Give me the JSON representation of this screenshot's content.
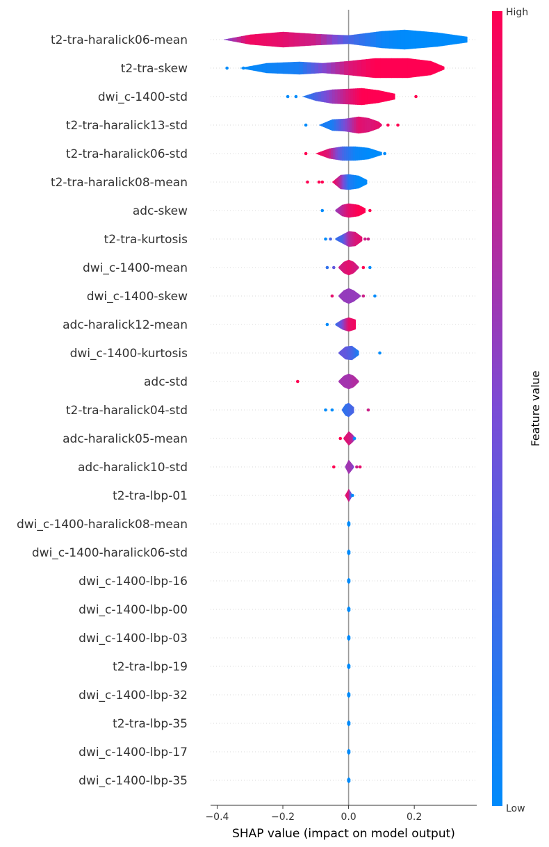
{
  "chart_data": {
    "type": "violin",
    "xlabel": "SHAP value (impact on model output)",
    "xlim": [
      -0.42,
      0.39
    ],
    "xticks": [
      -0.4,
      -0.2,
      0.0,
      0.2
    ],
    "xtick_labels": [
      "−0.4",
      "−0.2",
      "0.0",
      "0.2"
    ],
    "colorbar": {
      "title": "Feature value",
      "high_label": "High",
      "low_label": "Low",
      "low_color": "#008bfb",
      "high_color": "#ff0052"
    },
    "features": [
      {
        "name": "t2-tra-haralick06-mean",
        "segs": [
          [
            -0.38,
            0.0,
            0.5
          ],
          [
            -0.3,
            0.35,
            0.95
          ],
          [
            -0.2,
            0.55,
            0.9
          ],
          [
            -0.1,
            0.4,
            0.8
          ],
          [
            0.0,
            0.3,
            0.3
          ],
          [
            0.1,
            0.6,
            0.05
          ],
          [
            0.17,
            0.7,
            0.0
          ],
          [
            0.27,
            0.5,
            0.0
          ],
          [
            0.36,
            0.2,
            0.0
          ]
        ],
        "dots": []
      },
      {
        "name": "t2-tra-skew",
        "segs": [
          [
            -0.33,
            0.0,
            0.0
          ],
          [
            -0.25,
            0.35,
            0.05
          ],
          [
            -0.15,
            0.45,
            0.1
          ],
          [
            -0.08,
            0.35,
            0.5
          ],
          [
            0.0,
            0.5,
            0.85
          ],
          [
            0.08,
            0.7,
            1.0
          ],
          [
            0.18,
            0.7,
            1.0
          ],
          [
            0.25,
            0.5,
            1.0
          ],
          [
            0.29,
            0.1,
            1.0
          ]
        ],
        "dots": [
          [
            -0.37,
            0.0
          ],
          [
            -0.32,
            0.0
          ]
        ]
      },
      {
        "name": "dwi_c-1400-std",
        "segs": [
          [
            -0.14,
            0.0,
            0.1
          ],
          [
            -0.1,
            0.3,
            0.3
          ],
          [
            -0.05,
            0.5,
            0.6
          ],
          [
            0.0,
            0.55,
            0.85
          ],
          [
            0.04,
            0.6,
            1.0
          ],
          [
            0.09,
            0.45,
            1.0
          ],
          [
            0.14,
            0.2,
            1.0
          ]
        ],
        "dots": [
          [
            -0.185,
            0.0
          ],
          [
            -0.16,
            0.0
          ],
          [
            0.205,
            1.0
          ]
        ]
      },
      {
        "name": "t2-tra-haralick13-std",
        "segs": [
          [
            -0.09,
            0.0,
            0.1
          ],
          [
            -0.05,
            0.4,
            0.1
          ],
          [
            -0.01,
            0.45,
            0.5
          ],
          [
            0.03,
            0.6,
            0.9
          ],
          [
            0.06,
            0.5,
            0.85
          ],
          [
            0.09,
            0.25,
            0.9
          ],
          [
            0.1,
            0.05,
            0.9
          ]
        ],
        "dots": [
          [
            -0.13,
            0.0
          ],
          [
            0.12,
            1.0
          ],
          [
            0.15,
            1.0
          ]
        ]
      },
      {
        "name": "t2-tra-haralick06-std",
        "segs": [
          [
            -0.1,
            0.0,
            1.0
          ],
          [
            -0.06,
            0.35,
            0.85
          ],
          [
            -0.02,
            0.5,
            0.3
          ],
          [
            0.02,
            0.5,
            0.05
          ],
          [
            0.06,
            0.4,
            0.0
          ],
          [
            0.1,
            0.1,
            0.0
          ]
        ],
        "dots": [
          [
            -0.13,
            1.0
          ],
          [
            0.11,
            0.0
          ]
        ]
      },
      {
        "name": "t2-tra-haralick08-mean",
        "segs": [
          [
            -0.05,
            0.0,
            1.0
          ],
          [
            -0.025,
            0.5,
            0.7
          ],
          [
            0.0,
            0.55,
            0.15
          ],
          [
            0.03,
            0.45,
            0.0
          ],
          [
            0.055,
            0.15,
            0.0
          ]
        ],
        "dots": [
          [
            -0.125,
            1.0
          ],
          [
            -0.09,
            1.0
          ],
          [
            -0.08,
            1.0
          ]
        ]
      },
      {
        "name": "adc-skew",
        "segs": [
          [
            -0.04,
            0.05,
            0.6
          ],
          [
            -0.02,
            0.4,
            0.75
          ],
          [
            0.0,
            0.5,
            0.9
          ],
          [
            0.03,
            0.4,
            1.0
          ],
          [
            0.05,
            0.15,
            1.0
          ]
        ],
        "dots": [
          [
            -0.08,
            0.0
          ],
          [
            0.065,
            1.0
          ]
        ]
      },
      {
        "name": "t2-tra-kurtosis",
        "segs": [
          [
            -0.04,
            0.05,
            0.2
          ],
          [
            -0.02,
            0.3,
            0.3
          ],
          [
            0.0,
            0.55,
            0.7
          ],
          [
            0.02,
            0.5,
            0.85
          ],
          [
            0.04,
            0.15,
            0.9
          ]
        ],
        "dots": [
          [
            -0.07,
            0.0
          ],
          [
            -0.055,
            0.3
          ],
          [
            0.05,
            0.8
          ],
          [
            0.06,
            0.8
          ]
        ]
      },
      {
        "name": "dwi_c-1400-mean",
        "segs": [
          [
            -0.03,
            0.05,
            0.8
          ],
          [
            -0.015,
            0.4,
            0.85
          ],
          [
            0.0,
            0.55,
            0.9
          ],
          [
            0.015,
            0.4,
            0.85
          ],
          [
            0.03,
            0.05,
            0.8
          ]
        ],
        "dots": [
          [
            -0.065,
            0.2
          ],
          [
            -0.045,
            0.4
          ],
          [
            0.045,
            1.0
          ],
          [
            0.065,
            0.0
          ]
        ]
      },
      {
        "name": "dwi_c-1400-skew",
        "segs": [
          [
            -0.03,
            0.05,
            0.6
          ],
          [
            -0.015,
            0.4,
            0.6
          ],
          [
            0.0,
            0.55,
            0.6
          ],
          [
            0.015,
            0.4,
            0.6
          ],
          [
            0.035,
            0.05,
            0.6
          ]
        ],
        "dots": [
          [
            -0.05,
            0.9
          ],
          [
            0.045,
            0.8
          ],
          [
            0.08,
            0.0
          ]
        ]
      },
      {
        "name": "adc-haralick12-mean",
        "segs": [
          [
            -0.04,
            0.05,
            0.2
          ],
          [
            -0.02,
            0.35,
            0.5
          ],
          [
            0.0,
            0.5,
            0.9
          ],
          [
            0.02,
            0.35,
            0.95
          ],
          [
            0.02,
            0.05,
            0.95
          ]
        ],
        "dots": [
          [
            -0.065,
            0.0
          ]
        ]
      },
      {
        "name": "dwi_c-1400-kurtosis",
        "segs": [
          [
            -0.03,
            0.05,
            0.4
          ],
          [
            -0.01,
            0.45,
            0.4
          ],
          [
            0.01,
            0.5,
            0.3
          ],
          [
            0.03,
            0.15,
            0.1
          ]
        ],
        "dots": [
          [
            0.095,
            0.0
          ]
        ]
      },
      {
        "name": "adc-std",
        "segs": [
          [
            -0.03,
            0.05,
            0.65
          ],
          [
            -0.015,
            0.4,
            0.65
          ],
          [
            0.0,
            0.55,
            0.65
          ],
          [
            0.015,
            0.4,
            0.7
          ],
          [
            0.03,
            0.05,
            0.7
          ]
        ],
        "dots": [
          [
            -0.155,
            1.0
          ]
        ]
      },
      {
        "name": "t2-tra-haralick04-std",
        "segs": [
          [
            -0.02,
            0.05,
            0.2
          ],
          [
            -0.01,
            0.4,
            0.2
          ],
          [
            0.0,
            0.5,
            0.25
          ],
          [
            0.015,
            0.2,
            0.3
          ]
        ],
        "dots": [
          [
            -0.07,
            0.0
          ],
          [
            -0.05,
            0.0
          ],
          [
            0.06,
            0.8
          ]
        ]
      },
      {
        "name": "adc-haralick05-mean",
        "segs": [
          [
            -0.015,
            0.05,
            0.9
          ],
          [
            0.0,
            0.5,
            0.85
          ],
          [
            0.01,
            0.3,
            0.75
          ],
          [
            0.02,
            0.05,
            0.4
          ]
        ],
        "dots": [
          [
            -0.025,
            1.0
          ],
          [
            0.018,
            0.0
          ]
        ]
      },
      {
        "name": "adc-haralick10-std",
        "segs": [
          [
            -0.01,
            0.05,
            0.6
          ],
          [
            0.0,
            0.5,
            0.65
          ],
          [
            0.01,
            0.2,
            0.6
          ],
          [
            0.015,
            0.05,
            0.5
          ]
        ],
        "dots": [
          [
            -0.045,
            1.0
          ],
          [
            0.025,
            0.8
          ],
          [
            0.035,
            0.9
          ]
        ]
      },
      {
        "name": "t2-tra-lbp-01",
        "segs": [
          [
            -0.01,
            0.05,
            0.9
          ],
          [
            0.0,
            0.45,
            0.85
          ],
          [
            0.008,
            0.15,
            0.3
          ]
        ],
        "dots": [
          [
            0.012,
            0.0
          ]
        ]
      },
      {
        "name": "dwi_c-1400-haralick08-mean",
        "segs": [
          [
            -0.004,
            0.1,
            0.0
          ],
          [
            0.0,
            0.2,
            0.0
          ],
          [
            0.004,
            0.1,
            0.0
          ]
        ],
        "dots": []
      },
      {
        "name": "dwi_c-1400-haralick06-std",
        "segs": [
          [
            -0.004,
            0.1,
            0.0
          ],
          [
            0.0,
            0.2,
            0.0
          ],
          [
            0.004,
            0.1,
            0.0
          ]
        ],
        "dots": []
      },
      {
        "name": "dwi_c-1400-lbp-16",
        "segs": [
          [
            -0.004,
            0.1,
            0.0
          ],
          [
            0.0,
            0.2,
            0.0
          ],
          [
            0.004,
            0.1,
            0.0
          ]
        ],
        "dots": []
      },
      {
        "name": "dwi_c-1400-lbp-00",
        "segs": [
          [
            -0.004,
            0.1,
            0.0
          ],
          [
            0.0,
            0.2,
            0.0
          ],
          [
            0.004,
            0.1,
            0.0
          ]
        ],
        "dots": []
      },
      {
        "name": "dwi_c-1400-lbp-03",
        "segs": [
          [
            -0.004,
            0.1,
            0.0
          ],
          [
            0.0,
            0.2,
            0.0
          ],
          [
            0.004,
            0.1,
            0.0
          ]
        ],
        "dots": []
      },
      {
        "name": "t2-tra-lbp-19",
        "segs": [
          [
            -0.004,
            0.1,
            0.0
          ],
          [
            0.0,
            0.2,
            0.0
          ],
          [
            0.004,
            0.1,
            0.0
          ]
        ],
        "dots": []
      },
      {
        "name": "dwi_c-1400-lbp-32",
        "segs": [
          [
            -0.004,
            0.1,
            0.0
          ],
          [
            0.0,
            0.2,
            0.0
          ],
          [
            0.004,
            0.1,
            0.0
          ]
        ],
        "dots": []
      },
      {
        "name": "t2-tra-lbp-35",
        "segs": [
          [
            -0.004,
            0.1,
            0.0
          ],
          [
            0.0,
            0.2,
            0.0
          ],
          [
            0.004,
            0.1,
            0.0
          ]
        ],
        "dots": []
      },
      {
        "name": "dwi_c-1400-lbp-17",
        "segs": [
          [
            -0.004,
            0.1,
            0.0
          ],
          [
            0.0,
            0.2,
            0.0
          ],
          [
            0.004,
            0.1,
            0.0
          ]
        ],
        "dots": []
      },
      {
        "name": "dwi_c-1400-lbp-35",
        "segs": [
          [
            -0.004,
            0.1,
            0.0
          ],
          [
            0.0,
            0.2,
            0.0
          ],
          [
            0.004,
            0.1,
            0.0
          ]
        ],
        "dots": []
      }
    ]
  }
}
